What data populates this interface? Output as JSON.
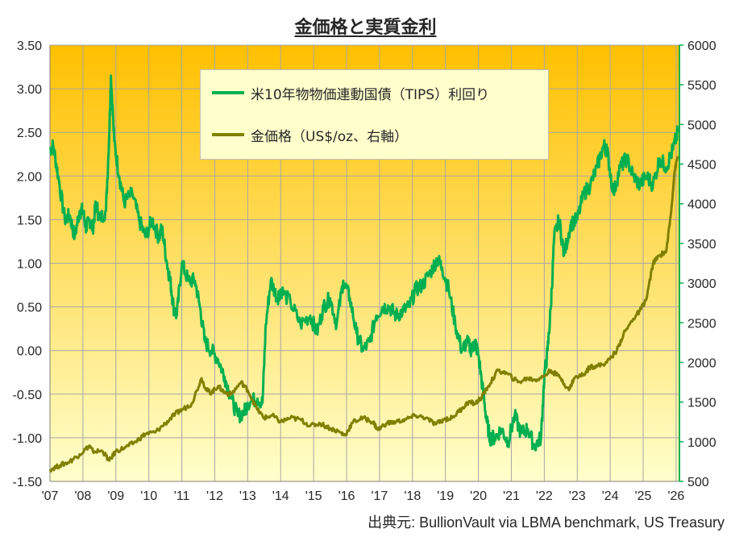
{
  "title": "金価格と実質金利",
  "source": "出典元: BullionVault via LBMA benchmark, US Treasury",
  "colors": {
    "tips": "#00b050",
    "gold": "#808000",
    "grid": "#a6a6a6",
    "bg_top": "#ffc000",
    "bg_bottom": "#ffffcc",
    "right_axis": "#00b050"
  },
  "chart_data": {
    "type": "line",
    "title": "金価格と実質金利",
    "x_ticks": [
      "'07",
      "'08",
      "'09",
      "'10",
      "'11",
      "'12",
      "'13",
      "'14",
      "'15",
      "'16",
      "'17",
      "'18",
      "'19",
      "'20",
      "'21",
      "'22",
      "'23",
      "'24",
      "'25",
      "'26"
    ],
    "x_range": [
      2007.0,
      2026.1
    ],
    "y_left": {
      "range": [
        -1.5,
        3.5
      ],
      "ticks": [
        "-1.50",
        "-1.00",
        "-0.50",
        "0.00",
        "0.50",
        "1.00",
        "1.50",
        "2.00",
        "2.50",
        "3.00",
        "3.50"
      ]
    },
    "y_right": {
      "range": [
        500,
        6000
      ],
      "ticks": [
        "500",
        "1000",
        "1500",
        "2000",
        "2500",
        "3000",
        "3500",
        "4000",
        "4500",
        "5000",
        "5500",
        "6000"
      ]
    },
    "grid": true,
    "legend_position": "top-center",
    "series": [
      {
        "name": "米10年物物価連動国債（TIPS）利回り",
        "axis": "left",
        "color": "#00b050",
        "x": [
          2007.0,
          2007.1,
          2007.25,
          2007.45,
          2007.6,
          2007.75,
          2007.9,
          2008.0,
          2008.1,
          2008.2,
          2008.3,
          2008.4,
          2008.5,
          2008.7,
          2008.8,
          2008.85,
          2008.95,
          2009.1,
          2009.25,
          2009.5,
          2009.7,
          2009.9,
          2010.1,
          2010.3,
          2010.4,
          2010.55,
          2010.65,
          2010.75,
          2010.85,
          2011.0,
          2011.2,
          2011.4,
          2011.55,
          2011.7,
          2011.9,
          2012.1,
          2012.3,
          2012.5,
          2012.7,
          2012.9,
          2013.0,
          2013.3,
          2013.45,
          2013.55,
          2013.7,
          2013.9,
          2014.0,
          2014.3,
          2014.6,
          2014.9,
          2015.1,
          2015.3,
          2015.5,
          2015.7,
          2015.9,
          2016.1,
          2016.3,
          2016.5,
          2016.7,
          2016.9,
          2017.1,
          2017.3,
          2017.5,
          2017.7,
          2017.9,
          2018.1,
          2018.3,
          2018.55,
          2018.75,
          2018.9,
          2019.1,
          2019.3,
          2019.5,
          2019.65,
          2019.8,
          2019.9,
          2020.0,
          2020.15,
          2020.25,
          2020.35,
          2020.5,
          2020.7,
          2020.9,
          2021.1,
          2021.3,
          2021.5,
          2021.7,
          2021.9,
          2022.0,
          2022.1,
          2022.2,
          2022.3,
          2022.45,
          2022.6,
          2022.8,
          2023.0,
          2023.2,
          2023.4,
          2023.6,
          2023.8,
          2023.9,
          2024.1,
          2024.3,
          2024.5,
          2024.7,
          2024.9,
          2025.1,
          2025.3,
          2025.5,
          2025.7,
          2025.9,
          2026.05
        ],
        "values": [
          2.3,
          2.35,
          2.0,
          1.5,
          1.55,
          1.3,
          1.6,
          1.6,
          1.4,
          1.5,
          1.4,
          1.7,
          1.5,
          1.6,
          2.5,
          3.15,
          2.4,
          2.0,
          1.7,
          1.8,
          1.5,
          1.3,
          1.5,
          1.3,
          1.4,
          1.0,
          0.8,
          0.5,
          0.4,
          1.0,
          0.8,
          0.8,
          0.5,
          0.1,
          0.0,
          -0.1,
          -0.3,
          -0.55,
          -0.75,
          -0.7,
          -0.6,
          -0.55,
          -0.6,
          0.3,
          0.8,
          0.6,
          0.7,
          0.55,
          0.3,
          0.4,
          0.2,
          0.5,
          0.6,
          0.3,
          0.8,
          0.6,
          0.2,
          0.0,
          0.1,
          0.4,
          0.5,
          0.5,
          0.4,
          0.45,
          0.5,
          0.7,
          0.75,
          0.9,
          1.05,
          0.95,
          0.7,
          0.3,
          0.0,
          0.1,
          0.0,
          0.1,
          -0.05,
          -0.5,
          -0.8,
          -1.0,
          -1.0,
          -0.9,
          -1.05,
          -0.75,
          -0.95,
          -0.9,
          -1.1,
          -1.0,
          -0.3,
          0.0,
          0.5,
          1.3,
          1.5,
          1.1,
          1.45,
          1.5,
          1.8,
          1.9,
          2.1,
          2.35,
          2.3,
          1.8,
          2.1,
          2.2,
          2.0,
          1.9,
          2.0,
          1.9,
          2.2,
          2.1,
          2.3,
          2.5
        ]
      },
      {
        "name": "金価格（US$/oz、右軸）",
        "axis": "right",
        "color": "#808000",
        "x": [
          2007.0,
          2007.3,
          2007.6,
          2007.9,
          2008.2,
          2008.3,
          2008.6,
          2008.8,
          2009.0,
          2009.3,
          2009.6,
          2009.9,
          2010.2,
          2010.5,
          2010.8,
          2011.0,
          2011.3,
          2011.6,
          2011.75,
          2011.9,
          2012.1,
          2012.3,
          2012.5,
          2012.8,
          2013.0,
          2013.3,
          2013.5,
          2013.75,
          2014.0,
          2014.3,
          2014.6,
          2014.9,
          2015.2,
          2015.5,
          2015.8,
          2015.95,
          2016.2,
          2016.5,
          2016.8,
          2016.95,
          2017.2,
          2017.5,
          2017.8,
          2018.1,
          2018.4,
          2018.7,
          2018.95,
          2019.2,
          2019.5,
          2019.7,
          2019.9,
          2020.1,
          2020.3,
          2020.6,
          2020.9,
          2021.2,
          2021.5,
          2021.7,
          2021.9,
          2022.2,
          2022.5,
          2022.75,
          2022.9,
          2023.2,
          2023.4,
          2023.6,
          2023.9,
          2024.2,
          2024.4,
          2024.7,
          2024.9,
          2025.1,
          2025.3,
          2025.5,
          2025.7,
          2025.85,
          2025.95,
          2026.05
        ],
        "values": [
          650,
          700,
          750,
          840,
          950,
          880,
          880,
          760,
          880,
          930,
          1000,
          1100,
          1120,
          1230,
          1350,
          1400,
          1480,
          1800,
          1650,
          1620,
          1700,
          1620,
          1600,
          1750,
          1650,
          1400,
          1300,
          1330,
          1250,
          1300,
          1280,
          1200,
          1230,
          1170,
          1120,
          1080,
          1250,
          1300,
          1250,
          1150,
          1230,
          1250,
          1280,
          1330,
          1300,
          1220,
          1280,
          1300,
          1420,
          1500,
          1480,
          1560,
          1700,
          1900,
          1850,
          1750,
          1800,
          1780,
          1800,
          1900,
          1800,
          1650,
          1800,
          1850,
          1950,
          1950,
          2000,
          2150,
          2350,
          2550,
          2650,
          2800,
          3250,
          3350,
          3400,
          3900,
          4400,
          4600
        ]
      }
    ]
  }
}
